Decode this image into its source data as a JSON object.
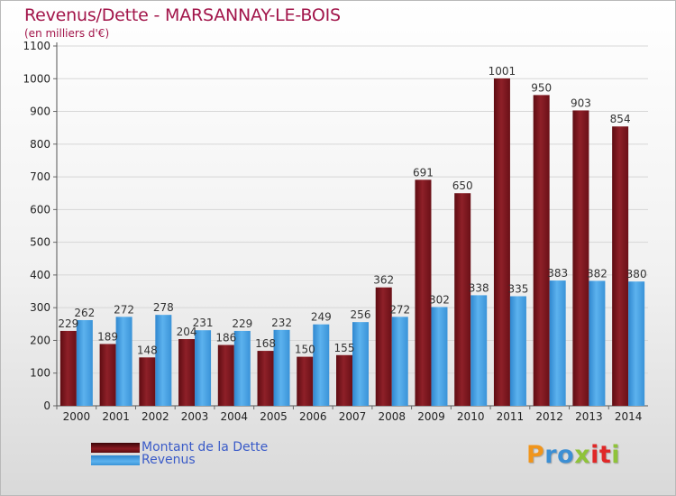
{
  "title": "Revenus/Dette - MARSANNAY-LE-BOIS",
  "subtitle": "(en milliers d'€)",
  "logo": {
    "text": "Proxiti",
    "letter_colors": [
      "#f0951c",
      "#3c8fd4",
      "#3c8fd4",
      "#8fc33a",
      "#e02828",
      "#e02828",
      "#8fc33a"
    ]
  },
  "colors": {
    "dette": "#8b1a22",
    "revenus": "#4aa3e6",
    "title": "#a2154a",
    "legend_text": "#3a5bc8",
    "axis_labels": "#222222",
    "grid": "#d7d7d7"
  },
  "chart_data": {
    "type": "bar",
    "title": "Revenus/Dette - MARSANNAY-LE-BOIS",
    "subtitle": "(en milliers d'€)",
    "categories": [
      "2000",
      "2001",
      "2002",
      "2003",
      "2004",
      "2005",
      "2006",
      "2007",
      "2008",
      "2009",
      "2010",
      "2011",
      "2012",
      "2013",
      "2014"
    ],
    "series": [
      {
        "name": "Montant de la Dette",
        "values": [
          229,
          189,
          148,
          204,
          186,
          168,
          150,
          155,
          362,
          691,
          650,
          1001,
          950,
          903,
          854
        ]
      },
      {
        "name": "Revenus",
        "values": [
          262,
          272,
          278,
          231,
          229,
          232,
          249,
          256,
          272,
          302,
          338,
          335,
          383,
          382,
          380
        ]
      }
    ],
    "yticks": [
      0,
      100,
      200,
      300,
      400,
      500,
      600,
      700,
      800,
      900,
      1000,
      1100
    ],
    "ylim": [
      0,
      1100
    ],
    "grid": true,
    "legend_position": "bottom-left"
  }
}
